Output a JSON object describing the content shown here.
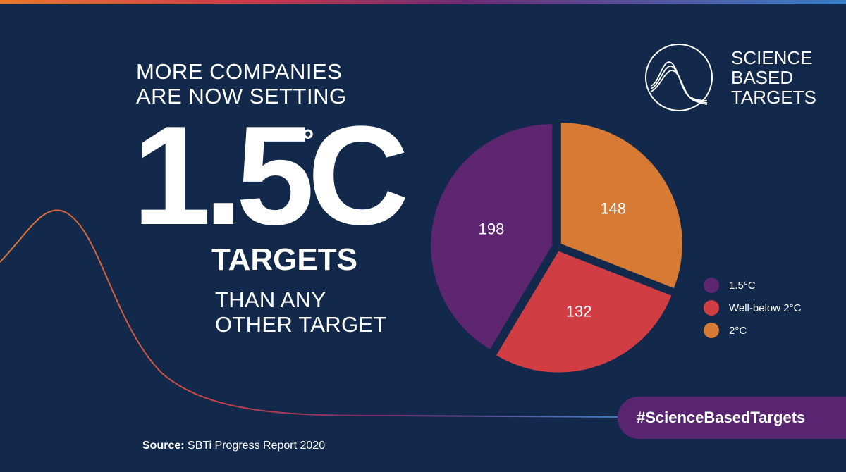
{
  "headline": {
    "line1": "MORE COMPANIES",
    "line2": "ARE NOW SETTING"
  },
  "big_number": "1.5",
  "big_unit": "C",
  "degree_symbol": "°",
  "targets_word": "TARGETS",
  "subline": {
    "line1": "THAN ANY",
    "line2": "OTHER TARGET"
  },
  "logo": {
    "line1": "SCIENCE",
    "line2": "BASED",
    "line3": "TARGETS",
    "icon": "wave-curves-icon"
  },
  "hashtag": "#ScienceBasedTargets",
  "source": {
    "label": "Source:",
    "text": "SBTi Progress Report 2020"
  },
  "colors": {
    "background": "#13294b",
    "purple": "#5e2670",
    "red": "#d03e44",
    "orange": "#d77a33",
    "hashtag_bg": "#5a2570"
  },
  "chart_data": {
    "type": "pie",
    "title": "",
    "categories": [
      "1.5°C",
      "Well-below 2°C",
      "2°C"
    ],
    "values": [
      198,
      132,
      148
    ],
    "colors": [
      "#5e2670",
      "#d03e44",
      "#d77a33"
    ],
    "legend": "right",
    "data_labels": true
  }
}
